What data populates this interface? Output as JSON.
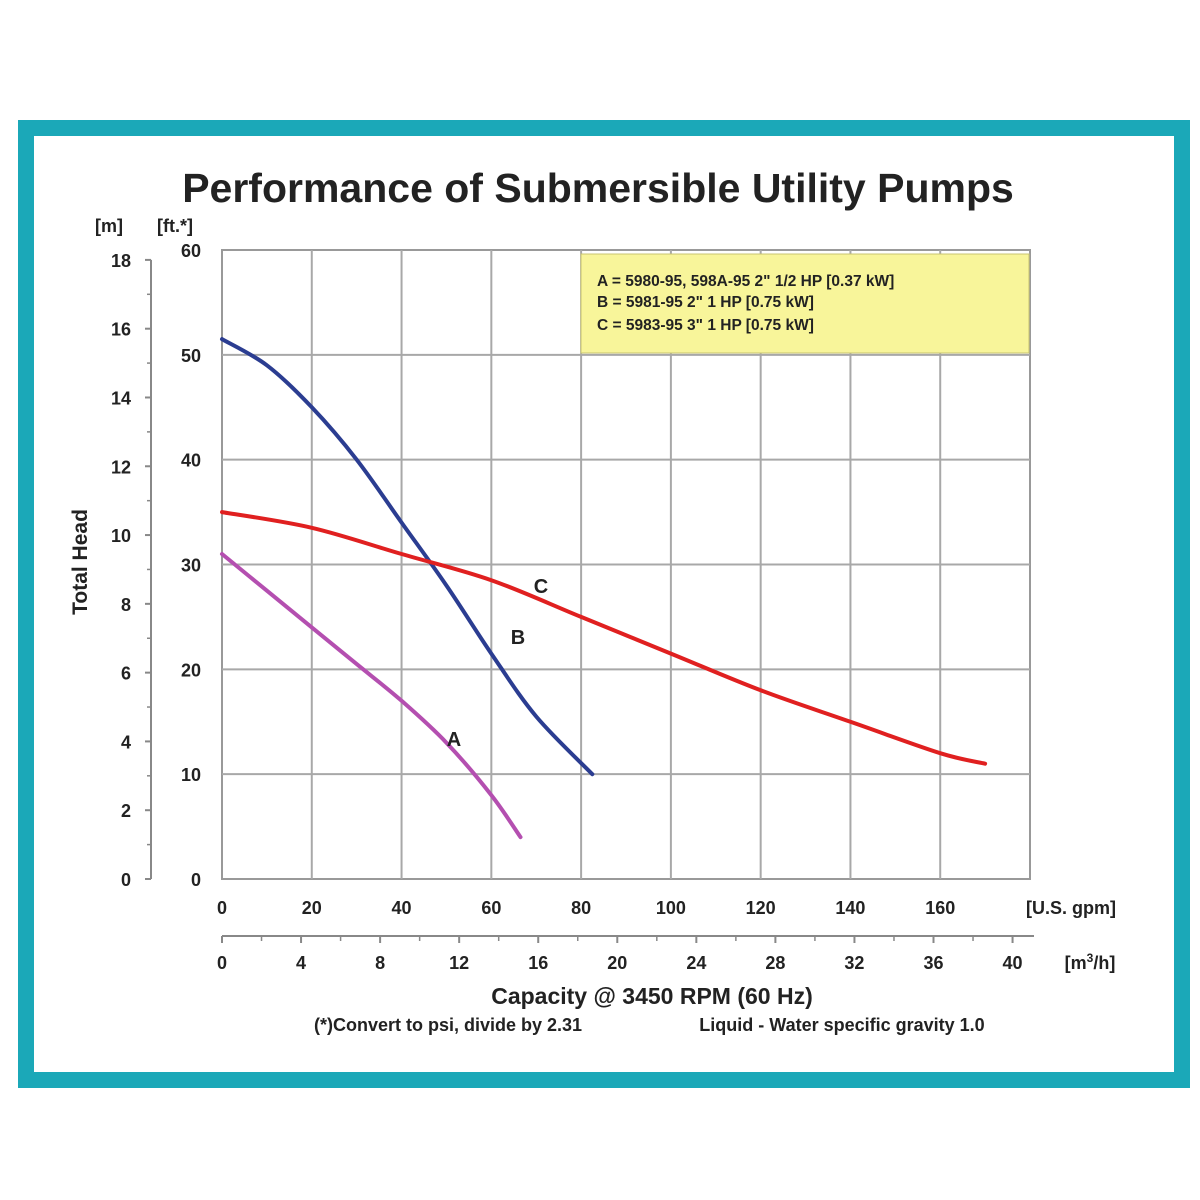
{
  "chart_data": {
    "type": "line",
    "title": "Performance of Submersible Utility Pumps",
    "y_unit_m": "[m]",
    "y_unit_ft": "[ft.*]",
    "ylabel": "Total Head",
    "xlabel": "Capacity @ 3450 RPM (60 Hz)",
    "x_unit_gpm": "[U.S. gpm]",
    "x_unit_m3h_pre": "[m",
    "x_unit_m3h_sup": "3",
    "x_unit_m3h_post": "/h]",
    "footnote_left": "(*)Convert to psi, divide by 2.31",
    "footnote_right": "Liquid - Water specific gravity 1.0",
    "xlim": [
      0,
      180
    ],
    "ylim": [
      0,
      60
    ],
    "x_ticks_gpm": [
      "0",
      "20",
      "40",
      "60",
      "80",
      "100",
      "120",
      "140",
      "160"
    ],
    "x_ticks_m3h": [
      "0",
      "4",
      "8",
      "12",
      "16",
      "20",
      "24",
      "28",
      "32",
      "36",
      "40"
    ],
    "y_ticks_ft": [
      "0",
      "10",
      "20",
      "30",
      "40",
      "50",
      "60"
    ],
    "y_ticks_m": [
      "0",
      "2",
      "4",
      "6",
      "8",
      "10",
      "12",
      "14",
      "16",
      "18"
    ],
    "legend": [
      "A = 5980-95, 598A-95 2\" 1/2 HP [0.37 kW]",
      "B = 5981-95 2\" 1 HP [0.75 kW]",
      "C = 5983-95 3\" 1 HP [0.75 kW]"
    ],
    "legend_position": "top-right",
    "grid": true,
    "series": [
      {
        "name": "A",
        "color": "#b44fb0",
        "x": [
          0,
          10,
          20,
          30,
          40,
          50,
          60,
          66.5
        ],
        "y": [
          31,
          27.5,
          24,
          20.5,
          17,
          13,
          8,
          4
        ]
      },
      {
        "name": "B",
        "color": "#2b3d91",
        "x": [
          0,
          10,
          20,
          30,
          40,
          50,
          60,
          70,
          82.5
        ],
        "y": [
          51.5,
          49,
          45,
          40,
          34,
          28,
          21.5,
          15.5,
          10
        ]
      },
      {
        "name": "C",
        "color": "#e02020",
        "x": [
          0,
          20,
          40,
          60,
          80,
          100,
          120,
          140,
          160,
          170
        ],
        "y": [
          35,
          33.5,
          31,
          28.5,
          25,
          21.5,
          18,
          15,
          12,
          11
        ]
      }
    ]
  }
}
